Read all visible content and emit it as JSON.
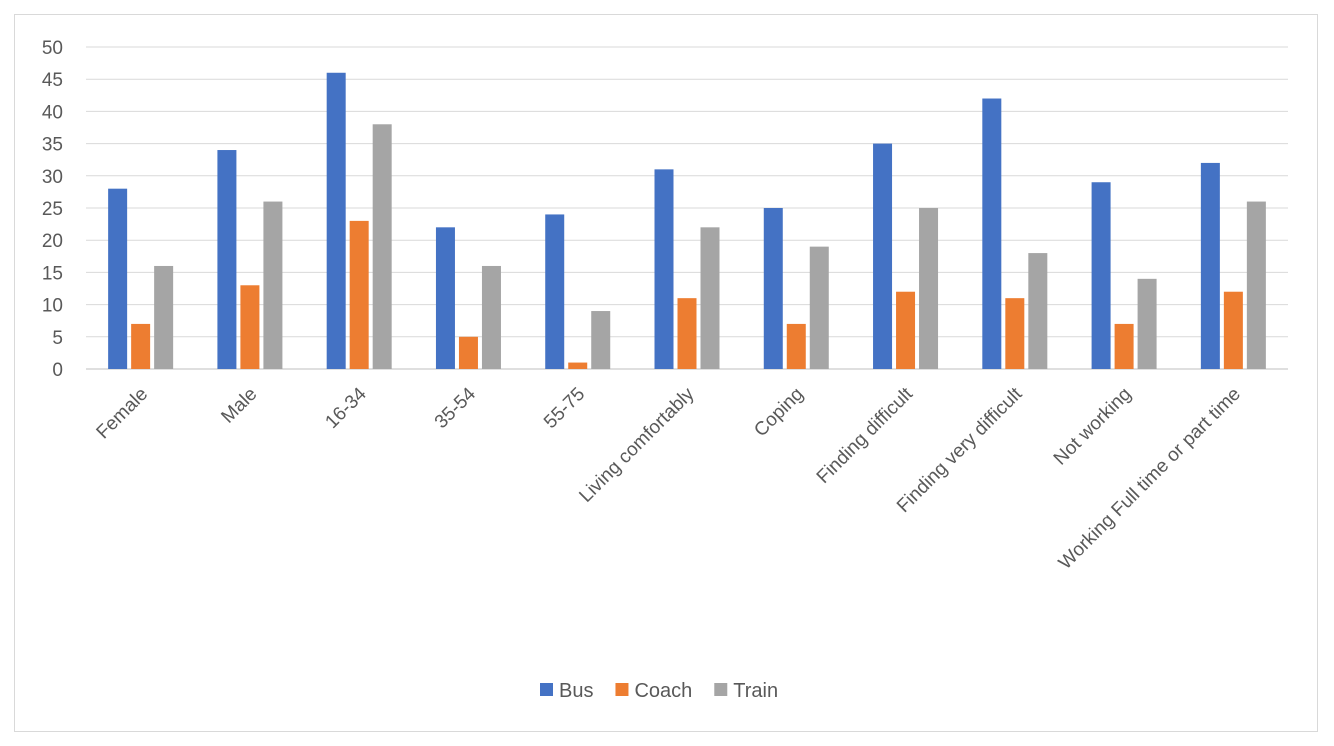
{
  "chart_data": {
    "type": "bar",
    "title": "",
    "xlabel": "",
    "ylabel": "",
    "ylim": [
      0,
      50
    ],
    "yticks": [
      0,
      5,
      10,
      15,
      20,
      25,
      30,
      35,
      40,
      45,
      50
    ],
    "grid": true,
    "legend_position": "bottom",
    "categories": [
      "Female",
      "Male",
      "16-34",
      "35-54",
      "55-75",
      "Living comfortably",
      "Coping",
      "Finding difficult",
      "Finding very difficult",
      "Not working",
      "Working Full time or part time"
    ],
    "series": [
      {
        "name": "Bus",
        "color": "#4472c4",
        "values": [
          28,
          34,
          46,
          22,
          24,
          31,
          25,
          35,
          42,
          29,
          32
        ]
      },
      {
        "name": "Coach",
        "color": "#ed7d31",
        "values": [
          7,
          13,
          23,
          5,
          1,
          11,
          7,
          12,
          11,
          7,
          12
        ]
      },
      {
        "name": "Train",
        "color": "#a5a5a5",
        "values": [
          16,
          26,
          38,
          16,
          9,
          22,
          19,
          25,
          18,
          14,
          26
        ]
      }
    ]
  }
}
